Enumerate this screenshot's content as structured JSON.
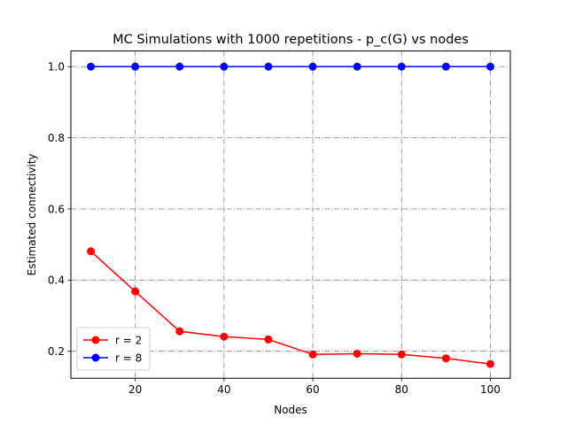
{
  "chart_data": {
    "type": "line",
    "title": "MC Simulations with 1000 repetitions - p_c(G) vs nodes",
    "xlabel": "Nodes",
    "ylabel": "Estimated connectivity",
    "xlim": [
      5.5,
      104.5
    ],
    "ylim": [
      0.124,
      1.044
    ],
    "xticks": [
      20,
      40,
      60,
      80,
      100
    ],
    "yticks": [
      0.2,
      0.4,
      0.6,
      0.8,
      1.0
    ],
    "xtick_labels": [
      "20",
      "40",
      "60",
      "80",
      "100"
    ],
    "ytick_labels": [
      "0.2",
      "0.4",
      "0.6",
      "0.8",
      "1.0"
    ],
    "grid": true,
    "legend_position": "lower-left",
    "x": [
      10,
      20,
      30,
      40,
      50,
      60,
      70,
      80,
      90,
      100
    ],
    "series": [
      {
        "name": "r = 2",
        "color": "#ff0000",
        "values": [
          0.481,
          0.368,
          0.256,
          0.241,
          0.233,
          0.191,
          0.193,
          0.191,
          0.18,
          0.164
        ]
      },
      {
        "name": "r = 8",
        "color": "#0000ff",
        "values": [
          1.0,
          1.0,
          1.0,
          1.0,
          1.0,
          1.0,
          1.0,
          1.0,
          1.0,
          1.0
        ]
      }
    ]
  }
}
